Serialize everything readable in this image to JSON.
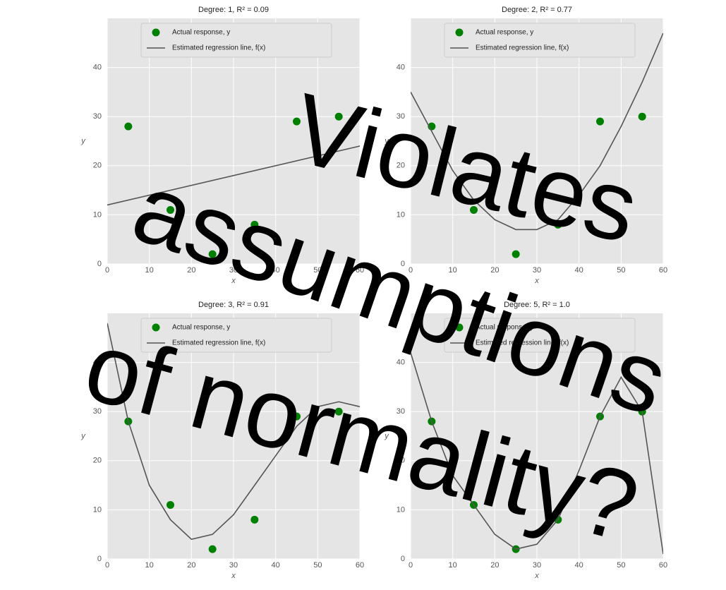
{
  "chart_data": [
    {
      "type": "scatter",
      "title": "Degree: 1, R² = 0.09",
      "xlabel": "x",
      "ylabel": "y",
      "xlim": [
        0,
        60
      ],
      "xticks": [
        0,
        10,
        20,
        30,
        40,
        50,
        60
      ],
      "ylim": [
        0,
        50
      ],
      "yticks": [
        0,
        10,
        20,
        30,
        40
      ],
      "grid": true,
      "series": [
        {
          "name": "Actual response, y",
          "color": "#008000",
          "mode": "markers",
          "x": [
            5,
            15,
            25,
            35,
            45,
            55
          ],
          "values": [
            28,
            11,
            2,
            8,
            29,
            30
          ]
        },
        {
          "name": "Estimated regression line, f(x)",
          "color": "#555555",
          "mode": "line",
          "x": [
            0,
            60
          ],
          "values": [
            12,
            24
          ]
        }
      ]
    },
    {
      "type": "scatter",
      "title": "Degree: 2, R² = 0.77",
      "xlabel": "x",
      "ylabel": "y",
      "xlim": [
        0,
        60
      ],
      "xticks": [
        0,
        10,
        20,
        30,
        40,
        50,
        60
      ],
      "ylim": [
        0,
        50
      ],
      "yticks": [
        0,
        10,
        20,
        30,
        40
      ],
      "grid": true,
      "series": [
        {
          "name": "Actual response, y",
          "color": "#008000",
          "mode": "markers",
          "x": [
            5,
            15,
            25,
            35,
            45,
            55
          ],
          "values": [
            28,
            11,
            2,
            8,
            29,
            30
          ]
        },
        {
          "name": "Estimated regression line, f(x)",
          "color": "#555555",
          "mode": "line",
          "x": [
            0,
            5,
            10,
            15,
            20,
            25,
            30,
            35,
            40,
            45,
            50,
            55,
            60
          ],
          "values": [
            35,
            27,
            19,
            13,
            9,
            7,
            7,
            9,
            14,
            20,
            28,
            37,
            47
          ]
        }
      ]
    },
    {
      "type": "scatter",
      "title": "Degree: 3, R² = 0.91",
      "xlabel": "x",
      "ylabel": "y",
      "xlim": [
        0,
        60
      ],
      "xticks": [
        0,
        10,
        20,
        30,
        40,
        50,
        60
      ],
      "ylim": [
        0,
        50
      ],
      "yticks": [
        0,
        10,
        20,
        30,
        40
      ],
      "grid": true,
      "series": [
        {
          "name": "Actual response, y",
          "color": "#008000",
          "mode": "markers",
          "x": [
            5,
            15,
            25,
            35,
            45,
            55
          ],
          "values": [
            28,
            11,
            2,
            8,
            29,
            30
          ]
        },
        {
          "name": "Estimated regression line, f(x)",
          "color": "#555555",
          "mode": "line",
          "x": [
            0,
            5,
            10,
            15,
            20,
            25,
            30,
            35,
            40,
            45,
            50,
            55,
            60
          ],
          "values": [
            48,
            28,
            15,
            8,
            4,
            5,
            9,
            15,
            21,
            27,
            31,
            32,
            31
          ]
        }
      ]
    },
    {
      "type": "scatter",
      "title": "Degree: 5, R² = 1.0",
      "xlabel": "x",
      "ylabel": "y",
      "xlim": [
        0,
        60
      ],
      "xticks": [
        0,
        10,
        20,
        30,
        40,
        50,
        60
      ],
      "ylim": [
        0,
        50
      ],
      "yticks": [
        0,
        10,
        20,
        30,
        40
      ],
      "grid": true,
      "series": [
        {
          "name": "Actual response, y",
          "color": "#008000",
          "mode": "markers",
          "x": [
            5,
            15,
            25,
            35,
            45,
            55
          ],
          "values": [
            28,
            11,
            2,
            8,
            29,
            30
          ]
        },
        {
          "name": "Estimated regression line, f(x)",
          "color": "#555555",
          "mode": "line",
          "x": [
            0,
            5,
            10,
            15,
            20,
            25,
            30,
            35,
            40,
            45,
            50,
            55,
            60
          ],
          "values": [
            42,
            28,
            17,
            11,
            5,
            2,
            3,
            8,
            18,
            29,
            37,
            30,
            1
          ]
        }
      ]
    }
  ],
  "overlay_text": [
    "Violates",
    "assumptions",
    "of normality?"
  ]
}
